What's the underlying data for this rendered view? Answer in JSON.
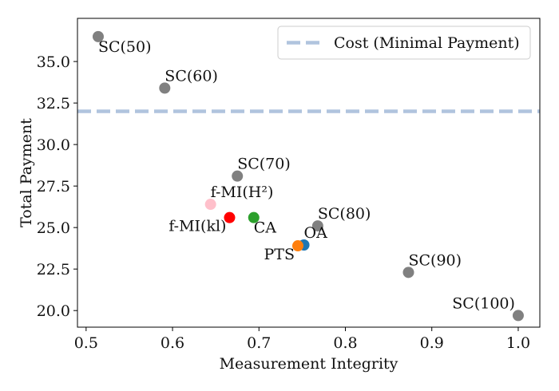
{
  "chart_data": {
    "type": "scatter",
    "title": "",
    "xlabel": "Measurement Integrity",
    "ylabel": "Total Payment",
    "xlim": [
      0.49,
      1.025
    ],
    "ylim": [
      19.0,
      37.6
    ],
    "xticks": [
      0.5,
      0.6,
      0.7,
      0.8,
      0.9,
      1.0
    ],
    "xtick_labels": [
      "0.5",
      "0.6",
      "0.7",
      "0.8",
      "0.9",
      "1.0"
    ],
    "yticks": [
      20.0,
      22.5,
      25.0,
      27.5,
      30.0,
      32.5,
      35.0
    ],
    "ytick_labels": [
      "20.0",
      "22.5",
      "25.0",
      "27.5",
      "30.0",
      "32.5",
      "35.0"
    ],
    "grid": false,
    "legend_position": "top-right",
    "reference_line": {
      "label": "Cost (Minimal Payment)",
      "y": 32.0,
      "color": "#b0c4de",
      "style": "dashed"
    },
    "points": [
      {
        "id": "sc-50",
        "label": "SC(50)",
        "x": 0.514,
        "y": 36.5,
        "color": "#808080",
        "label_pos": "below-right"
      },
      {
        "id": "sc-60",
        "label": "SC(60)",
        "x": 0.591,
        "y": 33.4,
        "color": "#808080",
        "label_pos": "above-right"
      },
      {
        "id": "sc-70",
        "label": "SC(70)",
        "x": 0.675,
        "y": 28.1,
        "color": "#808080",
        "label_pos": "above-right"
      },
      {
        "id": "f-mi-h2",
        "label": "f-MI(H²)",
        "x": 0.644,
        "y": 26.4,
        "color": "#ffc0cb",
        "label_pos": "above-right"
      },
      {
        "id": "f-mi-kl",
        "label": "f-MI(kl)",
        "x": 0.666,
        "y": 25.6,
        "color": "#ff0000",
        "label_pos": "below-left"
      },
      {
        "id": "ca",
        "label": "CA",
        "x": 0.694,
        "y": 25.6,
        "color": "#2ca02c",
        "label_pos": "below-right"
      },
      {
        "id": "sc-80",
        "label": "SC(80)",
        "x": 0.768,
        "y": 25.1,
        "color": "#808080",
        "label_pos": "above-right"
      },
      {
        "id": "oa",
        "label": "OA",
        "x": 0.752,
        "y": 23.95,
        "color": "#1f77b4",
        "label_pos": "above-right"
      },
      {
        "id": "pts",
        "label": "PTS",
        "x": 0.745,
        "y": 23.9,
        "color": "#ff7f0e",
        "label_pos": "below-left"
      },
      {
        "id": "sc-90",
        "label": "SC(90)",
        "x": 0.873,
        "y": 22.3,
        "color": "#808080",
        "label_pos": "above-right"
      },
      {
        "id": "sc-100",
        "label": "SC(100)",
        "x": 1.0,
        "y": 19.7,
        "color": "#808080",
        "label_pos": "above-left"
      }
    ]
  }
}
